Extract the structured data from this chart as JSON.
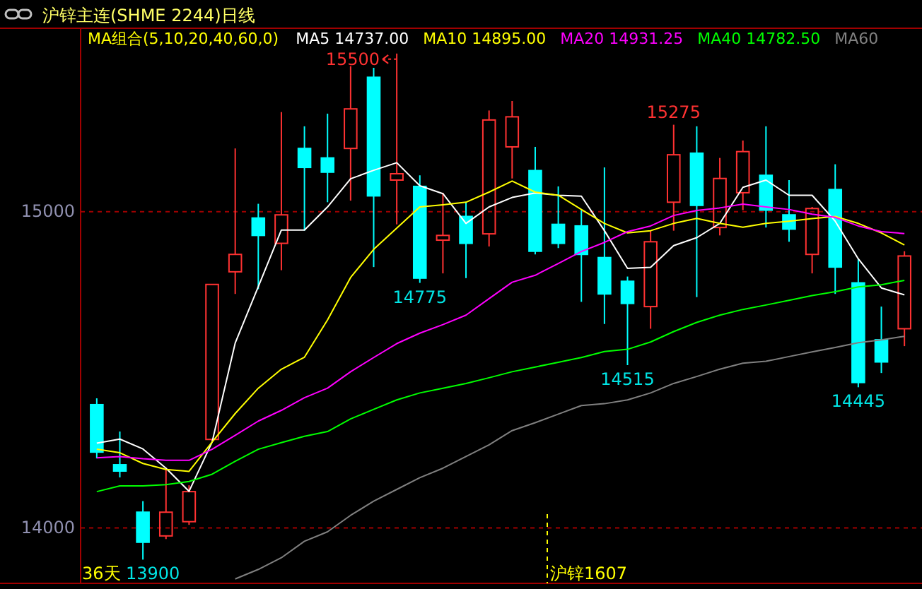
{
  "chart_data": {
    "type": "candlestick",
    "title": "沪锌主连(SHME 2244)日线",
    "legend_title": "MA组合(5,10,20,40,60,0)",
    "legend": "top",
    "categories": [
      null,
      null,
      null,
      null,
      null,
      null,
      null,
      null,
      null,
      null,
      null,
      null,
      null,
      null,
      null,
      null,
      null,
      null,
      null,
      null,
      null,
      null,
      null,
      null,
      null,
      null,
      null,
      null,
      null,
      null,
      null,
      null,
      null,
      null,
      null,
      null
    ],
    "ohlc": [
      [
        14390,
        14410,
        14220,
        14240
      ],
      [
        14200,
        14305,
        14160,
        14180
      ],
      [
        14050,
        14085,
        13900,
        13955
      ],
      [
        13975,
        14190,
        13965,
        14050
      ],
      [
        14020,
        14135,
        14010,
        14115
      ],
      [
        14280,
        14770,
        14275,
        14770
      ],
      [
        14810,
        15200,
        14740,
        14865
      ],
      [
        14980,
        15025,
        14755,
        14925
      ],
      [
        14900,
        15315,
        14815,
        14990
      ],
      [
        15200,
        15270,
        14940,
        15140
      ],
      [
        15170,
        15310,
        15030,
        15125
      ],
      [
        15200,
        15460,
        15035,
        15325
      ],
      [
        15425,
        15455,
        14825,
        15050
      ],
      [
        15100,
        15500,
        14960,
        15120
      ],
      [
        15080,
        15115,
        14775,
        14790
      ],
      [
        14910,
        15060,
        14805,
        14925
      ],
      [
        14985,
        15030,
        14790,
        14900
      ],
      [
        14930,
        15320,
        14890,
        15290
      ],
      [
        15205,
        15350,
        15105,
        15300
      ],
      [
        15130,
        15205,
        14865,
        14875
      ],
      [
        14960,
        15080,
        14885,
        14900
      ],
      [
        14955,
        15005,
        14715,
        14865
      ],
      [
        14855,
        15140,
        14645,
        14740
      ],
      [
        14780,
        14795,
        14515,
        14710
      ],
      [
        14700,
        14940,
        14630,
        14905
      ],
      [
        15030,
        15275,
        14940,
        15180
      ],
      [
        15185,
        15270,
        14730,
        15020
      ],
      [
        14950,
        15170,
        14925,
        15105
      ],
      [
        15060,
        15225,
        15005,
        15190
      ],
      [
        15115,
        15270,
        14950,
        15005
      ],
      [
        14990,
        15100,
        14905,
        14945
      ],
      [
        14865,
        15015,
        14805,
        15010
      ],
      [
        15070,
        15150,
        14740,
        14825
      ],
      [
        14775,
        14850,
        14445,
        14460
      ],
      [
        14595,
        14700,
        14490,
        14525
      ],
      [
        14630,
        14875,
        14575,
        14860
      ]
    ],
    "colors": [
      "#00ffff",
      "#00ffff",
      "#00ffff",
      "#ff3232",
      "#ff3232",
      "#ff3232",
      "#ff3232",
      "#00ffff",
      "#ff3232",
      "#00ffff",
      "#00ffff",
      "#ff3232",
      "#00ffff",
      "#ff3232",
      "#00ffff",
      "#ff3232",
      "#00ffff",
      "#ff3232",
      "#ff3232",
      "#00ffff",
      "#00ffff",
      "#00ffff",
      "#00ffff",
      "#00ffff",
      "#ff3232",
      "#ff3232",
      "#00ffff",
      "#ff3232",
      "#ff3232",
      "#00ffff",
      "#00ffff",
      "#ff3232",
      "#00ffff",
      "#00ffff",
      "#00ffff",
      "#ff3232"
    ],
    "series": [
      {
        "type": "line",
        "name": "MA5 14737.00",
        "color": "#ffffff",
        "values": [
          14268,
          14281,
          14250,
          14189,
          14116,
          14272,
          14585,
          14763,
          14942,
          14942,
          15015,
          15104,
          15131,
          15155,
          15082,
          15057,
          14963,
          15015,
          15045,
          15059,
          15052,
          15049,
          14940,
          14821,
          14824,
          14893,
          14918,
          14963,
          15077,
          15100,
          15052,
          15052,
          14970,
          14851,
          14759,
          14737
        ]
      },
      {
        "type": "line",
        "name": "MA10 14895.00",
        "color": "#ffff00",
        "values": [
          14249,
          14238,
          14204,
          14185,
          14179,
          14272,
          14362,
          14442,
          14502,
          14540,
          14658,
          14792,
          14881,
          14948,
          15015,
          15022,
          15030,
          15062,
          15097,
          15062,
          15052,
          15007,
          14963,
          14933,
          14940,
          14963,
          14979,
          14963,
          14951,
          14963,
          14970,
          14978,
          14985,
          14963,
          14933,
          14895
        ]
      },
      {
        "type": "line",
        "name": "MA20 14931.25",
        "color": "#ff00ff",
        "values": [
          14222,
          14226,
          14219,
          14214,
          14214,
          14249,
          14293,
          14338,
          14372,
          14412,
          14442,
          14494,
          14539,
          14583,
          14616,
          14643,
          14673,
          14725,
          14777,
          14799,
          14836,
          14874,
          14903,
          14937,
          14955,
          14988,
          15004,
          15012,
          15024,
          15015,
          15007,
          14992,
          14982,
          14955,
          14937,
          14931
        ]
      },
      {
        "type": "line",
        "name": "MA40 14782.50",
        "color": "#00ff00",
        "values": [
          14115,
          14133,
          14133,
          14137,
          14147,
          14170,
          14211,
          14249,
          14270,
          14290,
          14305,
          14345,
          14375,
          14405,
          14427,
          14442,
          14457,
          14475,
          14494,
          14509,
          14524,
          14539,
          14558,
          14565,
          14588,
          14621,
          14650,
          14673,
          14691,
          14705,
          14720,
          14735,
          14747,
          14762,
          14769,
          14783
        ]
      },
      {
        "type": "line",
        "name": "MA60",
        "color": "#808080",
        "values": [
          null,
          null,
          null,
          null,
          null,
          null,
          13839,
          13869,
          13906,
          13958,
          13988,
          14040,
          14085,
          14122,
          14159,
          14189,
          14226,
          14263,
          14308,
          14333,
          14360,
          14387,
          14393,
          14405,
          14427,
          14457,
          14479,
          14502,
          14521,
          14527,
          14542,
          14557,
          14571,
          14586,
          14595,
          14606
        ]
      }
    ],
    "ylim": [
      13825,
      15580
    ],
    "yticks": [
      14000,
      15000
    ],
    "grid": "y",
    "annotations": [
      "15500",
      {
        "text": "15275",
        "y": 15275
      },
      {
        "text": "14775",
        "y": 14775
      },
      {
        "text": "14515",
        "y": 14515
      },
      {
        "text": "14445",
        "y": 14445
      },
      "13900",
      "36天",
      "沪锌1607"
    ]
  }
}
